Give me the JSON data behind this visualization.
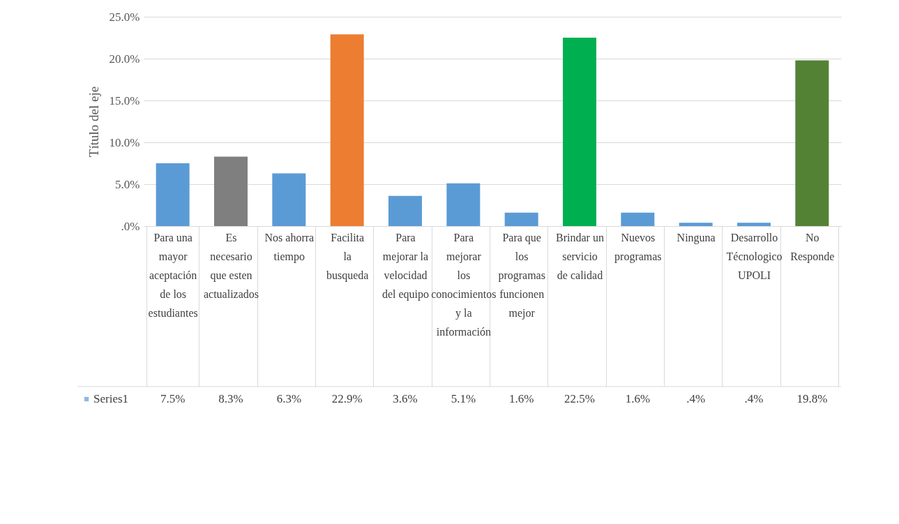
{
  "chart_data": {
    "type": "bar",
    "ylabel": "Título del eje",
    "categories": [
      "Para una mayor aceptación de los estudiantes",
      "Es necesario que esten actualizados",
      "Nos ahorra tiempo",
      "Facilita la busqueda",
      "Para mejorar la velocidad del equipo",
      "Para mejorar los conocimientos y la información",
      "Para que los programas funcionen mejor",
      "Brindar un servicio de calidad",
      "Nuevos programas",
      "Ninguna",
      "Desarrollo Técnologico UPOLI",
      "No Responde"
    ],
    "series": [
      {
        "name": "Series1",
        "values": [
          7.5,
          8.3,
          6.3,
          22.9,
          3.6,
          5.1,
          1.6,
          22.5,
          1.6,
          0.4,
          0.4,
          19.8
        ],
        "colors": [
          "#5b9bd5",
          "#7f7f7f",
          "#5b9bd5",
          "#ed7d31",
          "#5b9bd5",
          "#5b9bd5",
          "#5b9bd5",
          "#00b050",
          "#5b9bd5",
          "#5b9bd5",
          "#5b9bd5",
          "#548235"
        ],
        "value_labels": [
          "7.5%",
          "8.3%",
          "6.3%",
          "22.9%",
          "3.6%",
          "5.1%",
          "1.6%",
          "22.5%",
          "1.6%",
          ".4%",
          ".4%",
          "19.8%"
        ]
      }
    ],
    "ylim": [
      0,
      25
    ],
    "yticks": [
      {
        "value": 0,
        "label": ".0%"
      },
      {
        "value": 5,
        "label": "5.0%"
      },
      {
        "value": 10,
        "label": "10.0%"
      },
      {
        "value": 15,
        "label": "15.0%"
      },
      {
        "value": 20,
        "label": "20.0%"
      },
      {
        "value": 25,
        "label": "25.0%"
      }
    ],
    "grid": "y",
    "legend": "bottom"
  }
}
